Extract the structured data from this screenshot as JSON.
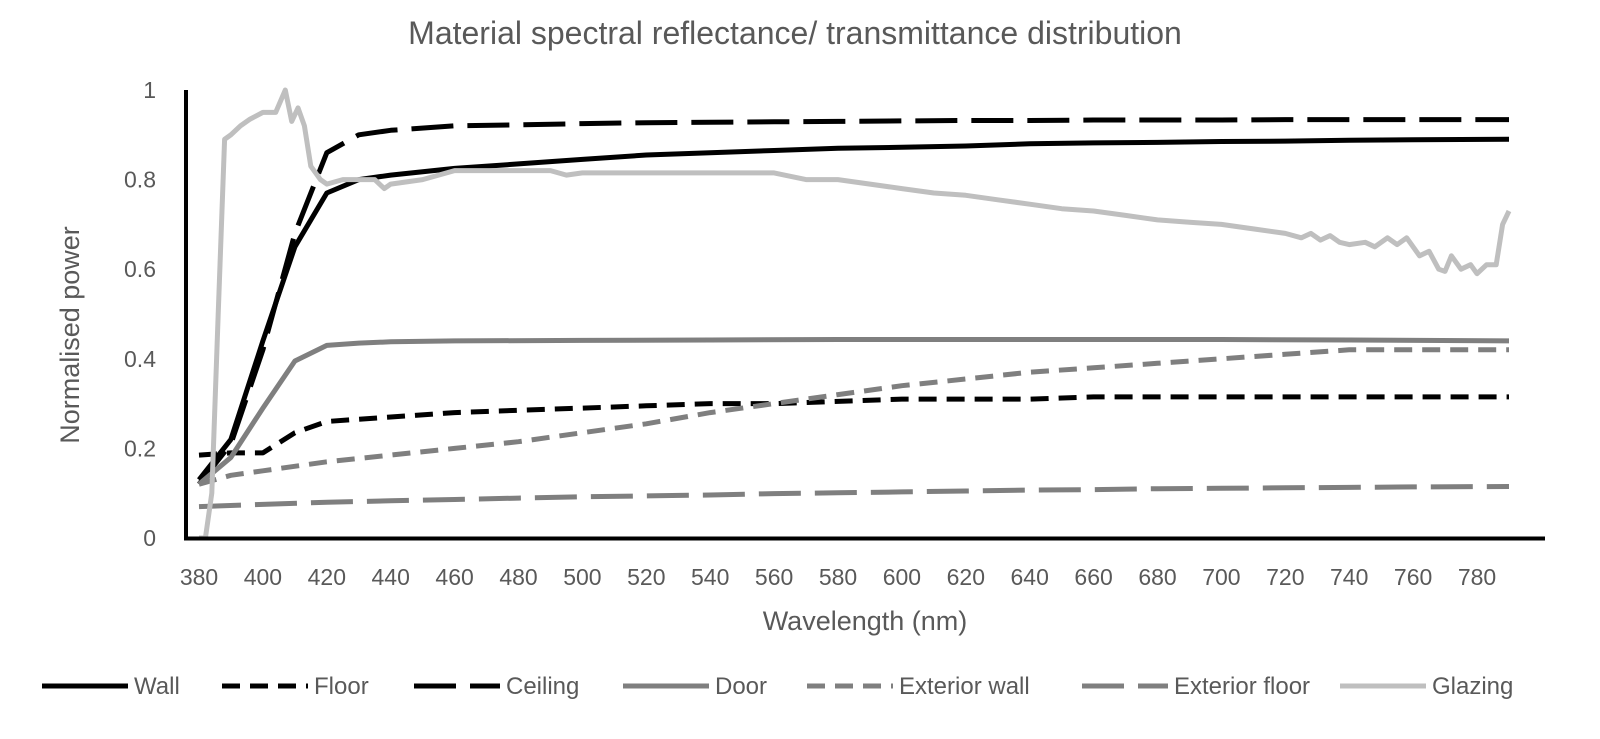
{
  "chart_data": {
    "type": "line",
    "title": "Material spectral reflectance/ transmittance distribution",
    "xlabel": "Wavelength (nm)",
    "ylabel": "Normalised power",
    "xlim": [
      380,
      790
    ],
    "ylim": [
      0,
      1
    ],
    "x_ticks": [
      "380",
      "400",
      "420",
      "440",
      "460",
      "480",
      "500",
      "520",
      "540",
      "560",
      "580",
      "600",
      "620",
      "640",
      "660",
      "680",
      "700",
      "720",
      "740",
      "760",
      "780"
    ],
    "y_ticks": [
      "0",
      "0.2",
      "0.4",
      "0.6",
      "0.8",
      "1"
    ],
    "grid": false,
    "legend_position": "bottom",
    "series": [
      {
        "name": "Wall",
        "color": "#000000",
        "dash": "solid",
        "points": [
          [
            380,
            0.13
          ],
          [
            390,
            0.22
          ],
          [
            400,
            0.44
          ],
          [
            410,
            0.65
          ],
          [
            420,
            0.77
          ],
          [
            430,
            0.8
          ],
          [
            440,
            0.81
          ],
          [
            460,
            0.825
          ],
          [
            480,
            0.835
          ],
          [
            500,
            0.845
          ],
          [
            520,
            0.855
          ],
          [
            540,
            0.86
          ],
          [
            560,
            0.865
          ],
          [
            580,
            0.87
          ],
          [
            600,
            0.872
          ],
          [
            620,
            0.875
          ],
          [
            640,
            0.88
          ],
          [
            660,
            0.882
          ],
          [
            680,
            0.883
          ],
          [
            700,
            0.885
          ],
          [
            720,
            0.886
          ],
          [
            740,
            0.888
          ],
          [
            760,
            0.889
          ],
          [
            790,
            0.89
          ]
        ]
      },
      {
        "name": "Floor",
        "color": "#000000",
        "dash": "short",
        "points": [
          [
            380,
            0.185
          ],
          [
            390,
            0.19
          ],
          [
            400,
            0.19
          ],
          [
            410,
            0.235
          ],
          [
            420,
            0.26
          ],
          [
            440,
            0.27
          ],
          [
            460,
            0.28
          ],
          [
            480,
            0.285
          ],
          [
            500,
            0.29
          ],
          [
            520,
            0.295
          ],
          [
            540,
            0.3
          ],
          [
            560,
            0.3
          ],
          [
            580,
            0.305
          ],
          [
            600,
            0.31
          ],
          [
            620,
            0.31
          ],
          [
            640,
            0.31
          ],
          [
            660,
            0.315
          ],
          [
            680,
            0.315
          ],
          [
            700,
            0.315
          ],
          [
            720,
            0.315
          ],
          [
            740,
            0.315
          ],
          [
            760,
            0.315
          ],
          [
            790,
            0.315
          ]
        ]
      },
      {
        "name": "Ceiling",
        "color": "#000000",
        "dash": "long",
        "points": [
          [
            380,
            0.12
          ],
          [
            390,
            0.21
          ],
          [
            400,
            0.42
          ],
          [
            410,
            0.68
          ],
          [
            420,
            0.86
          ],
          [
            430,
            0.9
          ],
          [
            440,
            0.91
          ],
          [
            460,
            0.92
          ],
          [
            480,
            0.922
          ],
          [
            500,
            0.925
          ],
          [
            520,
            0.927
          ],
          [
            540,
            0.928
          ],
          [
            560,
            0.929
          ],
          [
            580,
            0.93
          ],
          [
            600,
            0.931
          ],
          [
            620,
            0.932
          ],
          [
            640,
            0.932
          ],
          [
            660,
            0.933
          ],
          [
            680,
            0.933
          ],
          [
            700,
            0.933
          ],
          [
            720,
            0.934
          ],
          [
            740,
            0.934
          ],
          [
            760,
            0.934
          ],
          [
            790,
            0.934
          ]
        ]
      },
      {
        "name": "Door",
        "color": "#7f7f7f",
        "dash": "solid",
        "points": [
          [
            380,
            0.12
          ],
          [
            390,
            0.18
          ],
          [
            400,
            0.29
          ],
          [
            410,
            0.395
          ],
          [
            420,
            0.43
          ],
          [
            430,
            0.435
          ],
          [
            440,
            0.438
          ],
          [
            460,
            0.44
          ],
          [
            500,
            0.441
          ],
          [
            540,
            0.442
          ],
          [
            580,
            0.443
          ],
          [
            620,
            0.443
          ],
          [
            660,
            0.443
          ],
          [
            700,
            0.443
          ],
          [
            740,
            0.442
          ],
          [
            790,
            0.44
          ]
        ]
      },
      {
        "name": "Exterior wall",
        "color": "#7f7f7f",
        "dash": "short",
        "points": [
          [
            380,
            0.12
          ],
          [
            390,
            0.14
          ],
          [
            400,
            0.15
          ],
          [
            420,
            0.17
          ],
          [
            440,
            0.185
          ],
          [
            460,
            0.2
          ],
          [
            480,
            0.215
          ],
          [
            500,
            0.235
          ],
          [
            520,
            0.255
          ],
          [
            540,
            0.28
          ],
          [
            560,
            0.3
          ],
          [
            580,
            0.32
          ],
          [
            600,
            0.34
          ],
          [
            620,
            0.355
          ],
          [
            640,
            0.37
          ],
          [
            660,
            0.38
          ],
          [
            680,
            0.39
          ],
          [
            700,
            0.4
          ],
          [
            720,
            0.41
          ],
          [
            740,
            0.42
          ],
          [
            760,
            0.42
          ],
          [
            790,
            0.42
          ]
        ]
      },
      {
        "name": "Exterior floor",
        "color": "#7f7f7f",
        "dash": "long",
        "points": [
          [
            380,
            0.07
          ],
          [
            400,
            0.075
          ],
          [
            420,
            0.08
          ],
          [
            440,
            0.083
          ],
          [
            460,
            0.086
          ],
          [
            480,
            0.089
          ],
          [
            500,
            0.092
          ],
          [
            520,
            0.094
          ],
          [
            540,
            0.096
          ],
          [
            560,
            0.099
          ],
          [
            580,
            0.101
          ],
          [
            600,
            0.103
          ],
          [
            620,
            0.105
          ],
          [
            640,
            0.107
          ],
          [
            660,
            0.108
          ],
          [
            680,
            0.11
          ],
          [
            700,
            0.111
          ],
          [
            720,
            0.112
          ],
          [
            740,
            0.113
          ],
          [
            760,
            0.114
          ],
          [
            790,
            0.115
          ]
        ]
      },
      {
        "name": "Glazing",
        "color": "#bfbfbf",
        "dash": "solid",
        "points": [
          [
            380,
            0.0
          ],
          [
            382,
            0.0
          ],
          [
            384,
            0.1
          ],
          [
            386,
            0.5
          ],
          [
            388,
            0.89
          ],
          [
            390,
            0.9
          ],
          [
            393,
            0.92
          ],
          [
            396,
            0.935
          ],
          [
            400,
            0.95
          ],
          [
            404,
            0.95
          ],
          [
            407,
            1.0
          ],
          [
            409,
            0.93
          ],
          [
            411,
            0.96
          ],
          [
            413,
            0.92
          ],
          [
            415,
            0.83
          ],
          [
            418,
            0.8
          ],
          [
            420,
            0.79
          ],
          [
            425,
            0.8
          ],
          [
            430,
            0.8
          ],
          [
            435,
            0.8
          ],
          [
            438,
            0.78
          ],
          [
            440,
            0.79
          ],
          [
            450,
            0.8
          ],
          [
            455,
            0.81
          ],
          [
            460,
            0.82
          ],
          [
            470,
            0.82
          ],
          [
            480,
            0.82
          ],
          [
            490,
            0.82
          ],
          [
            495,
            0.81
          ],
          [
            500,
            0.815
          ],
          [
            520,
            0.815
          ],
          [
            540,
            0.815
          ],
          [
            560,
            0.815
          ],
          [
            570,
            0.8
          ],
          [
            580,
            0.8
          ],
          [
            590,
            0.79
          ],
          [
            600,
            0.78
          ],
          [
            610,
            0.77
          ],
          [
            620,
            0.765
          ],
          [
            630,
            0.755
          ],
          [
            640,
            0.745
          ],
          [
            650,
            0.735
          ],
          [
            660,
            0.73
          ],
          [
            670,
            0.72
          ],
          [
            680,
            0.71
          ],
          [
            690,
            0.705
          ],
          [
            700,
            0.7
          ],
          [
            710,
            0.69
          ],
          [
            720,
            0.68
          ],
          [
            725,
            0.67
          ],
          [
            728,
            0.68
          ],
          [
            731,
            0.665
          ],
          [
            734,
            0.675
          ],
          [
            737,
            0.66
          ],
          [
            740,
            0.655
          ],
          [
            745,
            0.66
          ],
          [
            748,
            0.65
          ],
          [
            752,
            0.67
          ],
          [
            755,
            0.655
          ],
          [
            758,
            0.67
          ],
          [
            762,
            0.63
          ],
          [
            765,
            0.64
          ],
          [
            768,
            0.6
          ],
          [
            770,
            0.595
          ],
          [
            772,
            0.63
          ],
          [
            775,
            0.6
          ],
          [
            778,
            0.61
          ],
          [
            780,
            0.59
          ],
          [
            783,
            0.61
          ],
          [
            786,
            0.61
          ],
          [
            788,
            0.7
          ],
          [
            790,
            0.73
          ]
        ]
      }
    ]
  }
}
